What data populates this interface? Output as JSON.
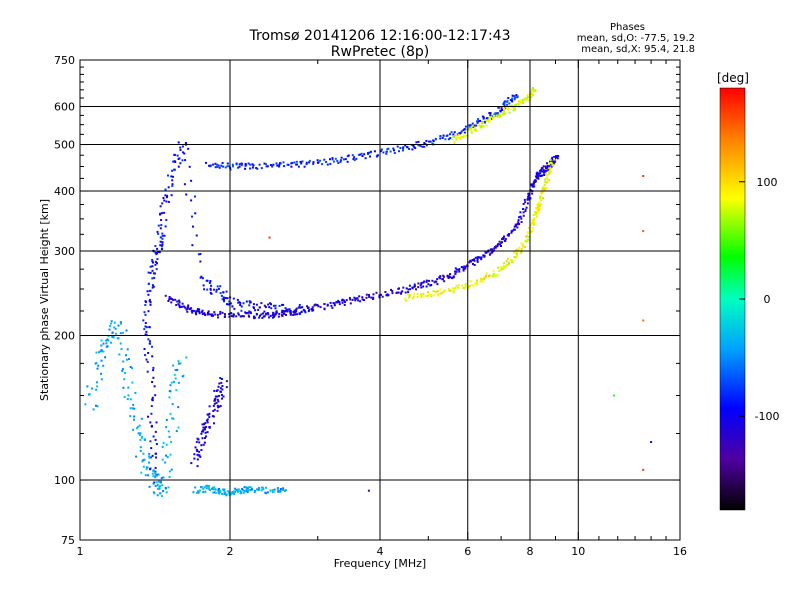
{
  "header": {
    "title_line1": "Tromsø 20141206 12:16:00-12:17:43",
    "title_line2": "RwPretec (8p)"
  },
  "phases_box": {
    "title": "Phases",
    "line_o": "mean, sd,O: -77.5, 19.2",
    "line_x": "mean, sd,X:  95.4, 21.8"
  },
  "colorbar": {
    "unit": "[deg]",
    "ticks": [
      {
        "label": "100",
        "value": 100
      },
      {
        "label": "0",
        "value": 0
      },
      {
        "label": "-100",
        "value": -100
      }
    ],
    "range": [
      -180,
      180
    ]
  },
  "chart_data": {
    "type": "scatter",
    "title": "Tromsø 20141206 12:16:00-12:17:43",
    "subtitle": "RwPretec (8p)",
    "xlabel": "Frequency [MHz]",
    "ylabel": "Stationary phase Virtual Height [km]",
    "xscale": "log",
    "yscale": "log",
    "xlim": [
      1,
      16
    ],
    "ylim": [
      75,
      750
    ],
    "xticks": [
      {
        "label": "1",
        "value": 1
      },
      {
        "label": "2",
        "value": 2
      },
      {
        "label": "4",
        "value": 4
      },
      {
        "label": "6",
        "value": 6
      },
      {
        "label": "8",
        "value": 8
      },
      {
        "label": "10",
        "value": 10
      },
      {
        "label": "16",
        "value": 16
      }
    ],
    "xgrid": [
      2,
      4,
      6,
      8,
      10
    ],
    "yticks": [
      {
        "label": "75",
        "value": 75
      },
      {
        "label": "100",
        "value": 100
      },
      {
        "label": "200",
        "value": 200
      },
      {
        "label": "300",
        "value": 300
      },
      {
        "label": "400",
        "value": 400
      },
      {
        "label": "500",
        "value": 500
      },
      {
        "label": "600",
        "value": 600
      },
      {
        "label": "750",
        "value": 750
      }
    ],
    "ygrid": [
      100,
      200,
      300,
      400,
      500,
      600
    ],
    "grid": true,
    "color_scale": "phase in degrees, -180 (black) to 180 (red), rainbow",
    "traces": [
      {
        "x": [
          1.4,
          1.4,
          1.38,
          1.36,
          1.38,
          1.42,
          1.45,
          1.48,
          1.55,
          1.62,
          1.75,
          1.9,
          2.0,
          2.2,
          2.4,
          2.6,
          2.8
        ],
        "y": [
          100,
          130,
          180,
          220,
          260,
          290,
          320,
          380,
          450,
          500,
          260,
          245,
          235,
          230,
          228,
          226,
          225
        ],
        "phase": -95,
        "spread": 0.02
      },
      {
        "x": [
          1.5,
          1.6,
          1.7,
          1.8,
          2.0,
          2.2,
          2.4,
          2.6,
          2.8,
          3.0,
          3.3,
          3.6,
          4.0,
          4.4,
          4.8,
          5.2,
          5.6,
          6.0,
          6.4,
          6.8,
          7.2,
          7.6,
          7.9,
          8.1,
          8.3,
          8.5,
          8.7,
          8.9,
          9.1
        ],
        "y": [
          240,
          230,
          225,
          222,
          220,
          220,
          221,
          223,
          226,
          229,
          233,
          238,
          243,
          248,
          254,
          260,
          268,
          280,
          292,
          305,
          320,
          345,
          380,
          410,
          430,
          440,
          450,
          460,
          470
        ],
        "phase": -110,
        "spread": 0.01
      },
      {
        "x": [
          1.8,
          2.0,
          2.2,
          2.5,
          2.8,
          3.2,
          3.6,
          4.0,
          4.5,
          5.0,
          5.5,
          6.0,
          6.4,
          6.8,
          7.2,
          7.6
        ],
        "y": [
          455,
          450,
          450,
          452,
          455,
          462,
          470,
          480,
          492,
          505,
          520,
          540,
          560,
          580,
          610,
          640
        ],
        "phase": -85,
        "spread": 0.01
      },
      {
        "x": [
          4.5,
          5.0,
          5.5,
          6.0,
          6.5,
          7.0,
          7.4,
          7.8,
          8.1,
          8.3,
          8.5,
          8.7,
          8.9
        ],
        "y": [
          240,
          243,
          248,
          255,
          263,
          275,
          290,
          310,
          340,
          370,
          400,
          430,
          470
        ],
        "phase": 85,
        "spread": 0.01
      },
      {
        "x": [
          5.6,
          6.0,
          6.4,
          6.8,
          7.2,
          7.6,
          8.0,
          8.2
        ],
        "y": [
          510,
          530,
          550,
          570,
          590,
          610,
          630,
          650
        ],
        "phase": 80,
        "spread": 0.01
      },
      {
        "x": [
          1.05,
          1.1,
          1.15,
          1.2,
          1.25,
          1.3,
          1.35,
          1.4,
          1.45,
          1.5,
          1.55,
          1.6
        ],
        "y": [
          140,
          180,
          200,
          210,
          160,
          130,
          110,
          100,
          95,
          110,
          150,
          180
        ],
        "phase": -40,
        "spread": 0.03
      },
      {
        "x": [
          1.7,
          1.8,
          1.9,
          2.0,
          2.1,
          2.2,
          2.4,
          2.6
        ],
        "y": [
          95,
          96,
          95,
          94,
          95,
          96,
          95,
          95
        ],
        "phase": -40,
        "spread": 0.01
      },
      {
        "x": [
          1.7,
          1.75,
          1.8,
          1.85,
          1.9,
          1.95
        ],
        "y": [
          110,
          120,
          130,
          140,
          150,
          160
        ],
        "phase": -110,
        "spread": 0.02
      }
    ],
    "isolated_points": [
      {
        "x": 13.5,
        "y": 430,
        "phase": 160
      },
      {
        "x": 13.5,
        "y": 330,
        "phase": 150
      },
      {
        "x": 13.5,
        "y": 215,
        "phase": 140
      },
      {
        "x": 14.0,
        "y": 120,
        "phase": -120
      },
      {
        "x": 13.5,
        "y": 105,
        "phase": 160
      },
      {
        "x": 2.4,
        "y": 320,
        "phase": 160
      },
      {
        "x": 3.8,
        "y": 95,
        "phase": -140
      },
      {
        "x": 11.8,
        "y": 150,
        "phase": 40
      }
    ]
  }
}
